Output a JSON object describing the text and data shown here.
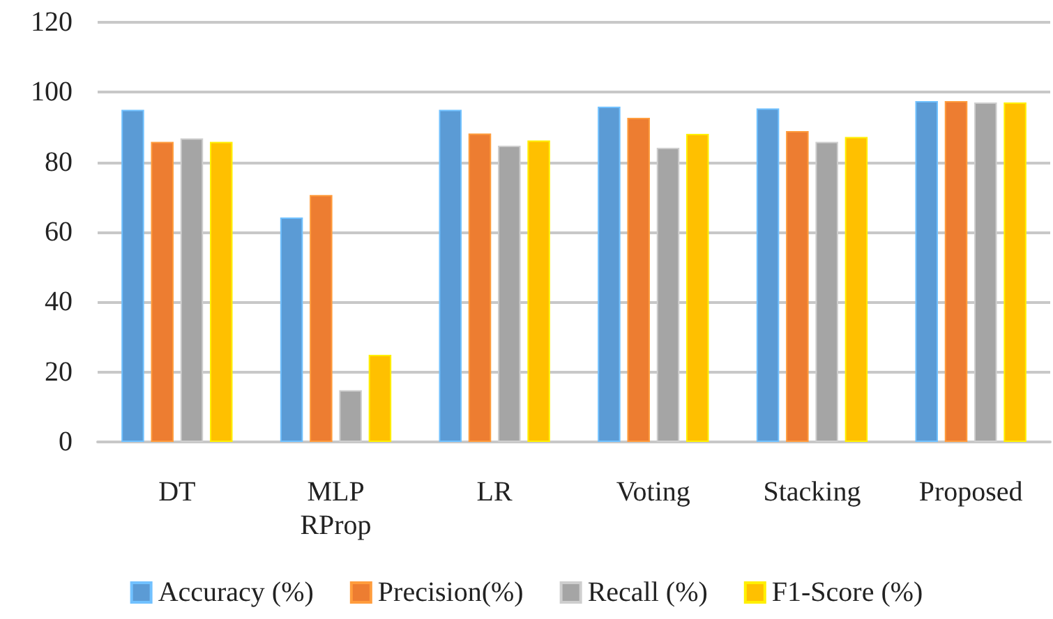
{
  "chart_data": {
    "type": "bar",
    "categories": [
      "DT",
      "MLP\nRProp",
      "LR",
      "Voting",
      "Stacking",
      "Proposed"
    ],
    "series": [
      {
        "name": "Accuracy (%)",
        "color": "#5b9bd5",
        "values": [
          95,
          64.2,
          95,
          95.9,
          95.4,
          97.5
        ]
      },
      {
        "name": "Precision(%)",
        "color": "#ed7d31",
        "values": [
          85.8,
          70.6,
          88.2,
          92.7,
          88.9,
          97.5
        ]
      },
      {
        "name": "Recall (%)",
        "color": "#a5a5a5",
        "values": [
          86.8,
          14.8,
          84.7,
          84.1,
          85.8,
          97.1
        ]
      },
      {
        "name": "F1-Score (%)",
        "color": "#ffc000",
        "values": [
          85.8,
          24.9,
          86.2,
          88.1,
          87.2,
          97.1
        ]
      }
    ],
    "ylim": [
      0,
      120
    ],
    "yticks": [
      0,
      20,
      40,
      60,
      80,
      100,
      120
    ],
    "grid": "y",
    "legend": "bottom"
  }
}
